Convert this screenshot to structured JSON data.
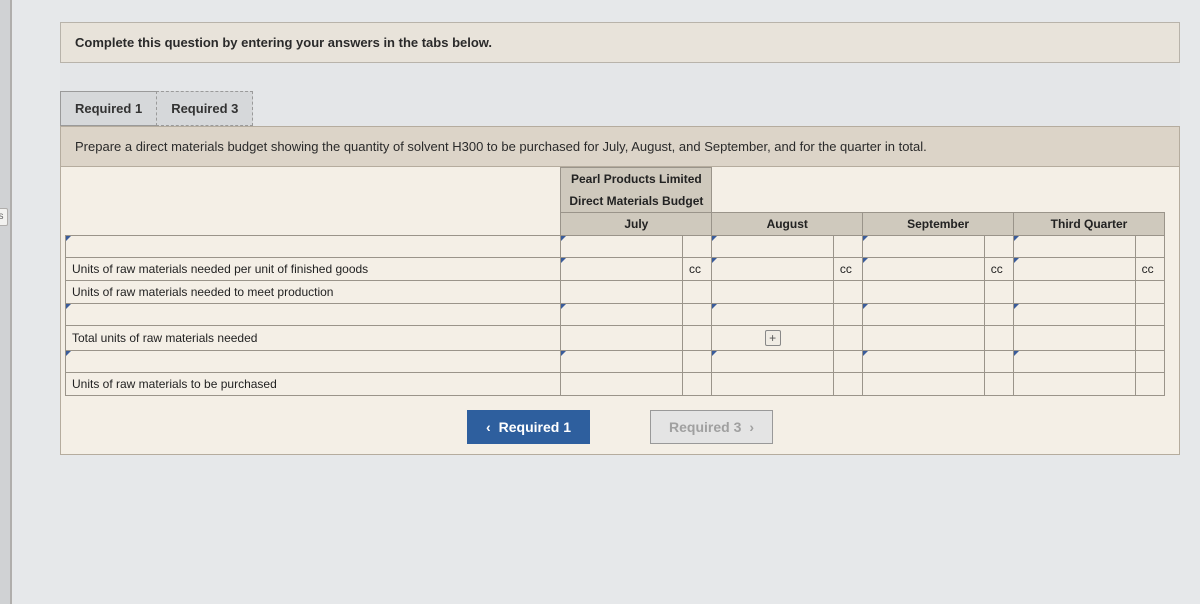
{
  "side_tab": "s",
  "instruction": "Complete this question by entering your answers in the tabs below.",
  "tabs": [
    {
      "label": "Required 1",
      "active": true
    },
    {
      "label": "Required 3",
      "active": false
    }
  ],
  "prompt": "Prepare a direct materials budget showing the quantity of solvent H300 to be purchased for July, August, and September, and for the quarter in total.",
  "sheet": {
    "title_lines": [
      "Pearl Products Limited",
      "Direct Materials Budget"
    ],
    "columns": [
      "July",
      "August",
      "September",
      "Third Quarter"
    ],
    "unit_suffix": "cc",
    "rows": [
      {
        "label": "",
        "blank": true
      },
      {
        "label": "Units of raw materials needed per unit of finished goods",
        "suffix": true
      },
      {
        "label": "Units of raw materials needed to meet production"
      },
      {
        "label": "",
        "blank": true
      },
      {
        "label": "Total units of raw materials needed",
        "plus": true
      },
      {
        "label": "",
        "blank": true
      },
      {
        "label": "Units of raw materials to be purchased"
      }
    ]
  },
  "nav": {
    "prev": "Required 1",
    "next": "Required 3"
  }
}
